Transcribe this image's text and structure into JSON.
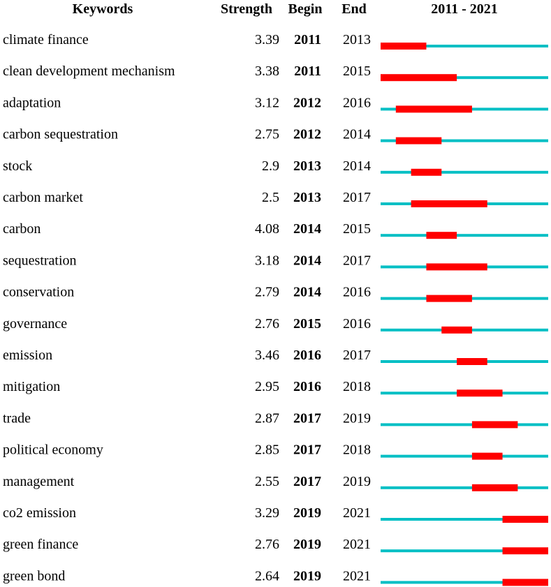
{
  "chart_data": {
    "type": "table",
    "headers": {
      "keywords": "Keywords",
      "strength": "Strength",
      "begin": "Begin",
      "end": "End",
      "range": "2011 - 2021"
    },
    "range_start": 2011,
    "range_end": 2021,
    "colors": {
      "timeline": "#00BFC4",
      "burst": "#FF0000"
    },
    "rows": [
      {
        "keyword": "climate finance",
        "strength": "3.39",
        "begin": 2011,
        "end": 2013
      },
      {
        "keyword": "clean development mechanism",
        "strength": "3.38",
        "begin": 2011,
        "end": 2015
      },
      {
        "keyword": "adaptation",
        "strength": "3.12",
        "begin": 2012,
        "end": 2016
      },
      {
        "keyword": "carbon sequestration",
        "strength": "2.75",
        "begin": 2012,
        "end": 2014
      },
      {
        "keyword": "stock",
        "strength": "2.9",
        "begin": 2013,
        "end": 2014
      },
      {
        "keyword": "carbon market",
        "strength": "2.5",
        "begin": 2013,
        "end": 2017
      },
      {
        "keyword": "carbon",
        "strength": "4.08",
        "begin": 2014,
        "end": 2015
      },
      {
        "keyword": "sequestration",
        "strength": "3.18",
        "begin": 2014,
        "end": 2017
      },
      {
        "keyword": "conservation",
        "strength": "2.79",
        "begin": 2014,
        "end": 2016
      },
      {
        "keyword": "governance",
        "strength": "2.76",
        "begin": 2015,
        "end": 2016
      },
      {
        "keyword": "emission",
        "strength": "3.46",
        "begin": 2016,
        "end": 2017
      },
      {
        "keyword": "mitigation",
        "strength": "2.95",
        "begin": 2016,
        "end": 2018
      },
      {
        "keyword": "trade",
        "strength": "2.87",
        "begin": 2017,
        "end": 2019
      },
      {
        "keyword": "political economy",
        "strength": "2.85",
        "begin": 2017,
        "end": 2018
      },
      {
        "keyword": "management",
        "strength": "2.55",
        "begin": 2017,
        "end": 2019
      },
      {
        "keyword": "co2 emission",
        "strength": "3.29",
        "begin": 2019,
        "end": 2021
      },
      {
        "keyword": "green finance",
        "strength": "2.76",
        "begin": 2019,
        "end": 2021
      },
      {
        "keyword": "green bond",
        "strength": "2.64",
        "begin": 2019,
        "end": 2021
      }
    ]
  }
}
